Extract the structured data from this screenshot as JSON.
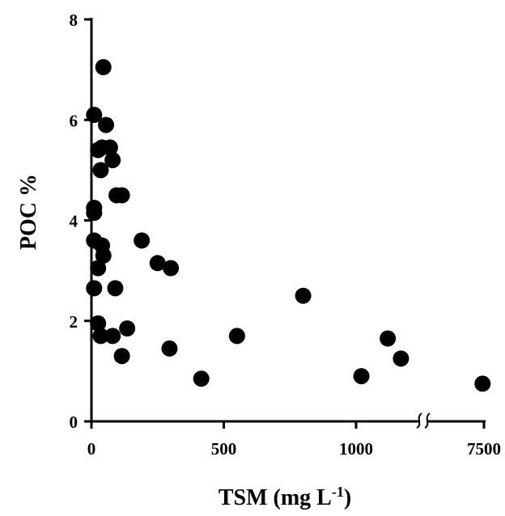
{
  "chart_data": {
    "type": "scatter",
    "xlabel_main": "TSM (mg L",
    "xlabel_sup": "-1",
    "xlabel_close": ")",
    "ylabel": "POC %",
    "xlim": [
      0,
      7500
    ],
    "ylim": [
      0,
      8
    ],
    "x_axis_break": "between 1000 and 7500",
    "x_ticks": [
      {
        "value": 0,
        "label": "0"
      },
      {
        "value": 500,
        "label": "500"
      },
      {
        "value": 1000,
        "label": "1000"
      },
      {
        "value": 7500,
        "label": "7500"
      }
    ],
    "y_ticks": [
      {
        "value": 0,
        "label": "0"
      },
      {
        "value": 2,
        "label": "2"
      },
      {
        "value": 4,
        "label": "4"
      },
      {
        "value": 6,
        "label": "6"
      },
      {
        "value": 8,
        "label": "8"
      }
    ],
    "points": [
      {
        "x": 45,
        "y": 7.05
      },
      {
        "x": 10,
        "y": 6.1
      },
      {
        "x": 55,
        "y": 5.9
      },
      {
        "x": 25,
        "y": 5.4
      },
      {
        "x": 40,
        "y": 5.45
      },
      {
        "x": 70,
        "y": 5.45
      },
      {
        "x": 80,
        "y": 5.2
      },
      {
        "x": 35,
        "y": 5.0
      },
      {
        "x": 95,
        "y": 4.5
      },
      {
        "x": 115,
        "y": 4.5
      },
      {
        "x": 10,
        "y": 4.25
      },
      {
        "x": 10,
        "y": 4.15
      },
      {
        "x": 190,
        "y": 3.6
      },
      {
        "x": 10,
        "y": 3.6
      },
      {
        "x": 40,
        "y": 3.5
      },
      {
        "x": 45,
        "y": 3.3
      },
      {
        "x": 250,
        "y": 3.15
      },
      {
        "x": 300,
        "y": 3.05
      },
      {
        "x": 25,
        "y": 3.05
      },
      {
        "x": 10,
        "y": 2.65
      },
      {
        "x": 90,
        "y": 2.65
      },
      {
        "x": 800,
        "y": 2.5
      },
      {
        "x": 25,
        "y": 1.95
      },
      {
        "x": 135,
        "y": 1.85
      },
      {
        "x": 80,
        "y": 1.7
      },
      {
        "x": 35,
        "y": 1.7
      },
      {
        "x": 550,
        "y": 1.7
      },
      {
        "x": 1120,
        "y": 1.65
      },
      {
        "x": 295,
        "y": 1.45
      },
      {
        "x": 115,
        "y": 1.3
      },
      {
        "x": 1170,
        "y": 1.25
      },
      {
        "x": 415,
        "y": 0.85
      },
      {
        "x": 1020,
        "y": 0.9
      },
      {
        "x": 7350,
        "y": 0.75
      }
    ]
  }
}
